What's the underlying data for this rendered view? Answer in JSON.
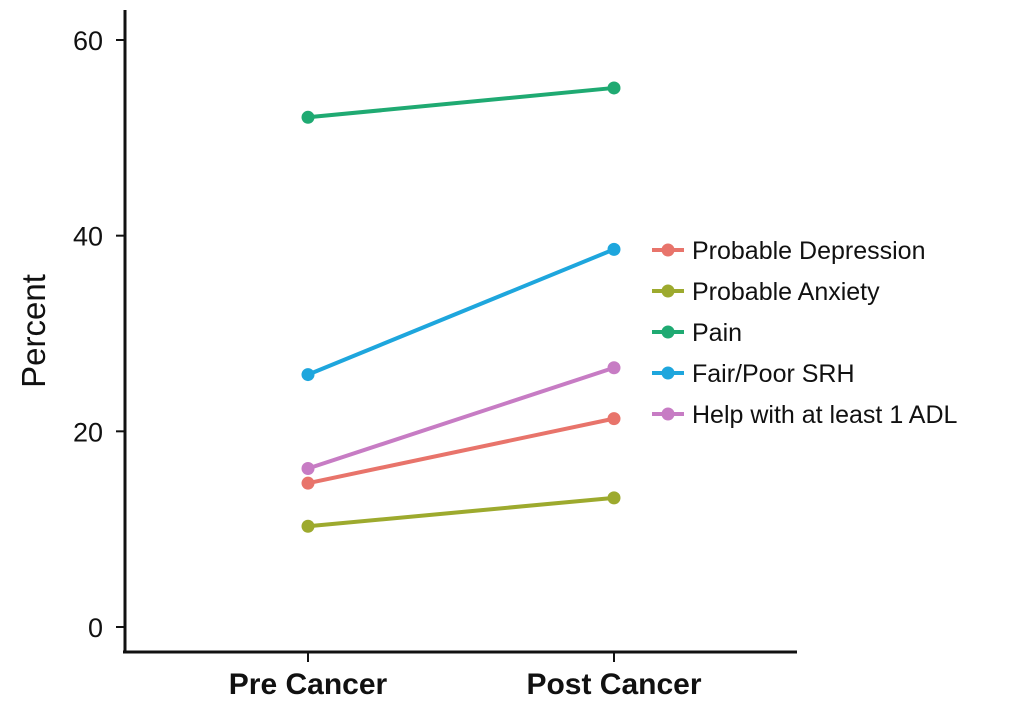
{
  "chart_data": {
    "type": "line",
    "ylabel": "Percent",
    "xlabel": "",
    "ylim": [
      0,
      62
    ],
    "y_ticks": [
      0,
      20,
      40,
      60
    ],
    "categories": [
      "Pre Cancer",
      "Post Cancer"
    ],
    "series": [
      {
        "name": "Probable Depression",
        "color": "#E8746B",
        "values": [
          14.7,
          21.3
        ]
      },
      {
        "name": "Probable Anxiety",
        "color": "#9DAA2E",
        "values": [
          10.3,
          13.2
        ]
      },
      {
        "name": "Pain",
        "color": "#1FAA72",
        "values": [
          52.1,
          55.1
        ]
      },
      {
        "name": "Fair/Poor SRH",
        "color": "#1EA6DD",
        "values": [
          25.8,
          38.6
        ]
      },
      {
        "name": "Help with at least 1 ADL",
        "color": "#C77CC4",
        "values": [
          16.2,
          26.5
        ]
      }
    ],
    "legend_position": "right",
    "grid": false
  }
}
